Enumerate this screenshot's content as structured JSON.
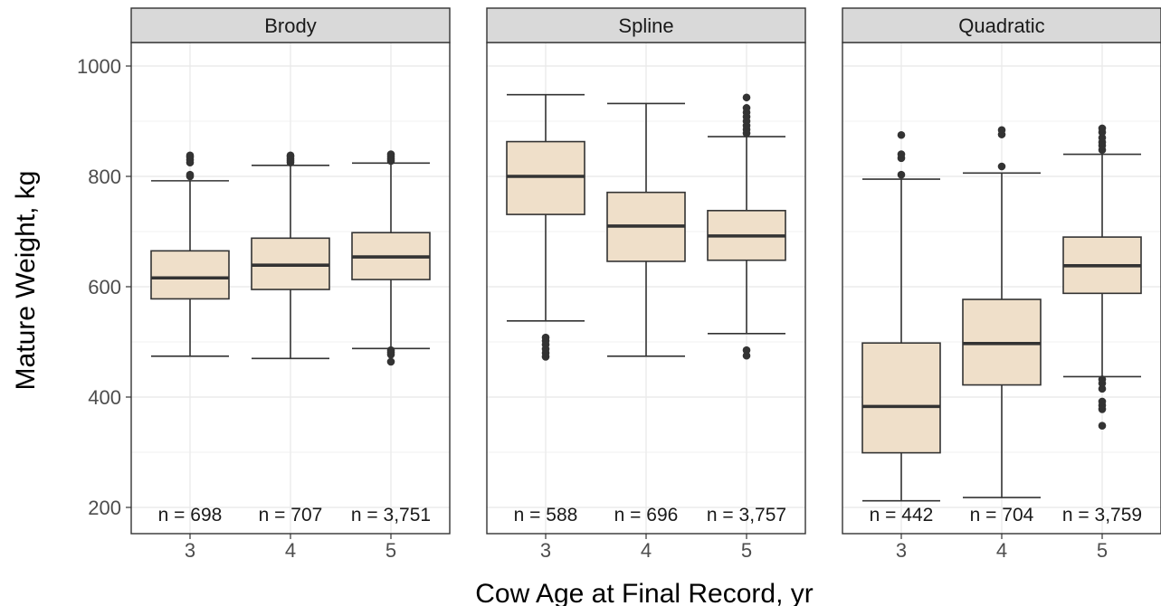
{
  "chart_data": {
    "type": "boxplot",
    "xlabel": "Cow Age at Final Record, yr",
    "ylabel": "Mature Weight, kg",
    "ylim": [
      200,
      1050
    ],
    "yticks": [
      200,
      400,
      600,
      800,
      1000
    ],
    "categories": [
      "3",
      "4",
      "5"
    ],
    "grid": true,
    "box_fill": "#efdfc9",
    "panels": [
      {
        "name": "Brody",
        "boxes": [
          {
            "x": "3",
            "n_label": "n = 698",
            "whisker_low": 474,
            "q1": 578,
            "median": 616,
            "q3": 665,
            "whisker_high": 792,
            "outliers": [
              800,
              803,
              825,
              830,
              835,
              838
            ]
          },
          {
            "x": "4",
            "n_label": "n = 707",
            "whisker_low": 470,
            "q1": 595,
            "median": 639,
            "q3": 688,
            "whisker_high": 820,
            "outliers": [
              825,
              828,
              832,
              836,
              838
            ]
          },
          {
            "x": "5",
            "n_label": "n = 3,751",
            "whisker_low": 488,
            "q1": 613,
            "median": 654,
            "q3": 698,
            "whisker_high": 824,
            "outliers": [
              464,
              477,
              481,
              485,
              828,
              832,
              836,
              840
            ]
          }
        ]
      },
      {
        "name": "Spline",
        "boxes": [
          {
            "x": "3",
            "n_label": "n = 588",
            "whisker_low": 538,
            "q1": 731,
            "median": 800,
            "q3": 863,
            "whisker_high": 948,
            "outliers": [
              473,
              480,
              487,
              495,
              502,
              508
            ]
          },
          {
            "x": "4",
            "n_label": "n = 696",
            "whisker_low": 474,
            "q1": 646,
            "median": 710,
            "q3": 771,
            "whisker_high": 932,
            "outliers": []
          },
          {
            "x": "5",
            "n_label": "n = 3,757",
            "whisker_low": 515,
            "q1": 648,
            "median": 692,
            "q3": 738,
            "whisker_high": 872,
            "outliers": [
              475,
              485,
              878,
              885,
              892,
              900,
              908,
              916,
              924,
              943
            ]
          }
        ]
      },
      {
        "name": "Quadratic",
        "boxes": [
          {
            "x": "3",
            "n_label": "n = 442",
            "whisker_low": 212,
            "q1": 299,
            "median": 383,
            "q3": 498,
            "whisker_high": 795,
            "outliers": [
              803,
              833,
              840,
              875
            ]
          },
          {
            "x": "4",
            "n_label": "n = 704",
            "whisker_low": 218,
            "q1": 422,
            "median": 497,
            "q3": 577,
            "whisker_high": 806,
            "outliers": [
              818,
              876,
              884
            ]
          },
          {
            "x": "5",
            "n_label": "n = 3,759",
            "whisker_low": 437,
            "q1": 588,
            "median": 638,
            "q3": 690,
            "whisker_high": 840,
            "outliers": [
              348,
              378,
              385,
              392,
              415,
              425,
              432,
              848,
              856,
              862,
              870,
              880,
              887
            ]
          }
        ]
      }
    ]
  }
}
